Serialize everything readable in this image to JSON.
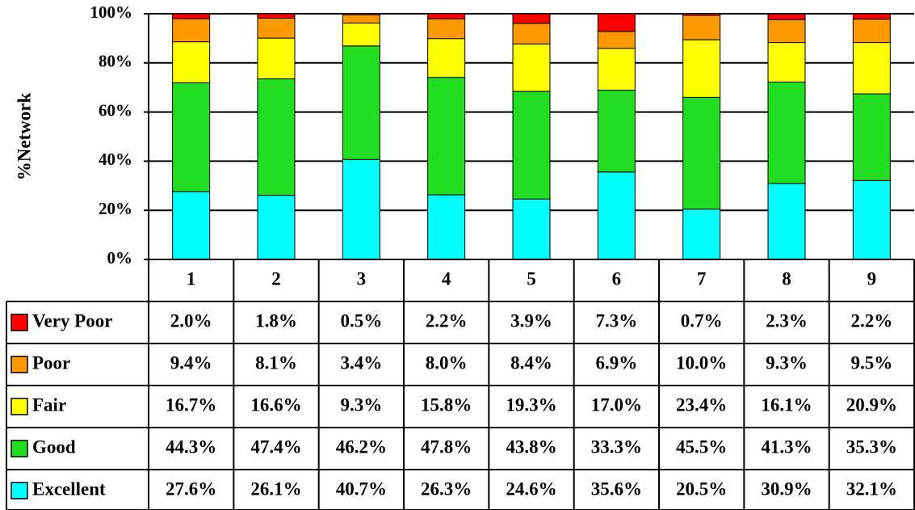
{
  "chart_data": {
    "type": "stacked_bar",
    "y_label": "%Network",
    "categories": [
      "1",
      "2",
      "3",
      "4",
      "5",
      "6",
      "7",
      "8",
      "9"
    ],
    "ylim": [
      0,
      100
    ],
    "yticks": [
      {
        "value": 0,
        "label": "0%"
      },
      {
        "value": 20,
        "label": "20%"
      },
      {
        "value": 40,
        "label": "40%"
      },
      {
        "value": 60,
        "label": "60%"
      },
      {
        "value": 80,
        "label": "80%"
      },
      {
        "value": 100,
        "label": "100%"
      }
    ],
    "grid": true,
    "series": [
      {
        "name": "Very Poor",
        "color": "#ff0000",
        "values": [
          2.0,
          1.8,
          0.5,
          2.2,
          3.9,
          7.3,
          0.7,
          2.3,
          2.2
        ],
        "value_labels": [
          "2.0%",
          "1.8%",
          "0.5%",
          "2.2%",
          "3.9%",
          "7.3%",
          "0.7%",
          "2.3%",
          "2.2%"
        ]
      },
      {
        "name": "Poor",
        "color": "#ff9900",
        "values": [
          9.4,
          8.1,
          3.4,
          8.0,
          8.4,
          6.9,
          10.0,
          9.3,
          9.5
        ],
        "value_labels": [
          "9.4%",
          "8.1%",
          "3.4%",
          "8.0%",
          "8.4%",
          "6.9%",
          "10.0%",
          "9.3%",
          "9.5%"
        ]
      },
      {
        "name": "Fair",
        "color": "#ffff00",
        "values": [
          16.7,
          16.6,
          9.3,
          15.8,
          19.3,
          17.0,
          23.4,
          16.1,
          20.9
        ],
        "value_labels": [
          "16.7%",
          "16.6%",
          "9.3%",
          "15.8%",
          "19.3%",
          "17.0%",
          "23.4%",
          "16.1%",
          "20.9%"
        ]
      },
      {
        "name": "Good",
        "color": "#22dd22",
        "values": [
          44.3,
          47.4,
          46.2,
          47.8,
          43.8,
          33.3,
          45.5,
          41.3,
          35.3
        ],
        "value_labels": [
          "44.3%",
          "47.4%",
          "46.2%",
          "47.8%",
          "43.8%",
          "33.3%",
          "45.5%",
          "41.3%",
          "35.3%"
        ]
      },
      {
        "name": "Excellent",
        "color": "#00ffff",
        "values": [
          27.6,
          26.1,
          40.7,
          26.3,
          24.6,
          35.6,
          20.5,
          30.9,
          32.1
        ],
        "value_labels": [
          "27.6%",
          "26.1%",
          "40.7%",
          "26.3%",
          "24.6%",
          "35.6%",
          "20.5%",
          "30.9%",
          "32.1%"
        ]
      }
    ]
  }
}
